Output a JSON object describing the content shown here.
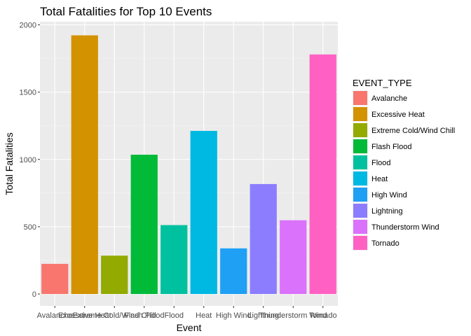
{
  "chart_data": {
    "type": "bar",
    "title": "Total Fatalities for Top 10 Events",
    "xlabel": "Event",
    "ylabel": "Total Fatalities",
    "categories": [
      "Avalanche",
      "Excessive Heat",
      "Extreme Cold/Wind Chill",
      "Flash Flood",
      "Flood",
      "Heat",
      "High Wind",
      "Lightning",
      "Thunderstorm Wind",
      "Tornado"
    ],
    "values": [
      224,
      1922,
      285,
      1035,
      512,
      1212,
      339,
      817,
      548,
      1780
    ],
    "colors": [
      "#F8766D",
      "#D39200",
      "#93AA00",
      "#00BA38",
      "#00C19F",
      "#00B9E3",
      "#1FA0F5",
      "#8C7DFF",
      "#DB72FB",
      "#FF61C3"
    ],
    "ylim": [
      0,
      2000
    ],
    "yticks": [
      0,
      500,
      1000,
      1500,
      2000
    ],
    "grid": true,
    "legend": {
      "title": "EVENT_TYPE",
      "placement": "right"
    }
  }
}
